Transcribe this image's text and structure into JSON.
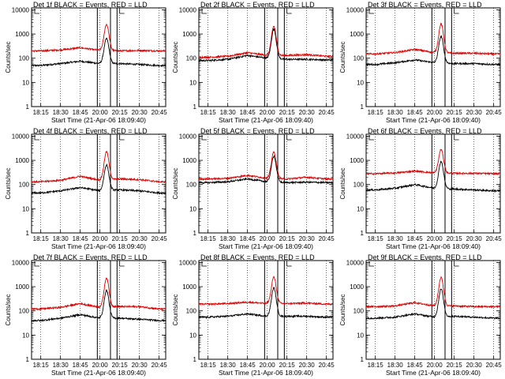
{
  "figure": {
    "ylabel": "Counts/sec",
    "xlabel": "Start Time (21-Apr-06 18:09:40)",
    "x_tick_labels": [
      "18:15",
      "18:30",
      "18:45",
      "20:00",
      "20:15",
      "20:30",
      "20:45"
    ],
    "y_tick_labels": [
      "1",
      "10",
      "100",
      "1000",
      "10000"
    ],
    "series_colors": {
      "events": "#000000",
      "lld": "#dd0000"
    }
  },
  "chart_data": [
    {
      "type": "line",
      "title": "Det 1f BLACK = Events, RED = LLD",
      "yscale": "log",
      "ylim": [
        1,
        12000
      ],
      "x_categories": [
        "18:15",
        "18:30",
        "18:45",
        "20:00",
        "20:15",
        "20:30",
        "20:45"
      ],
      "series": [
        {
          "color": "#000000",
          "x": [
            "18:15",
            "18:30",
            "18:45",
            "20:00",
            "20:05",
            "20:15",
            "20:30",
            "20:45"
          ],
          "values": [
            50,
            60,
            75,
            60,
            650,
            60,
            55,
            50
          ]
        },
        {
          "color": "#dd0000",
          "x": [
            "18:15",
            "18:30",
            "18:45",
            "20:00",
            "20:05",
            "20:15",
            "20:30",
            "20:45"
          ],
          "values": [
            200,
            220,
            270,
            210,
            2500,
            200,
            210,
            200
          ]
        }
      ]
    },
    {
      "type": "line",
      "title": "Det 2f BLACK = Events, RED = LLD",
      "yscale": "log",
      "ylim": [
        1,
        12000
      ],
      "x_categories": [
        "18:15",
        "18:30",
        "18:45",
        "20:00",
        "20:15",
        "20:30",
        "20:45"
      ],
      "series": [
        {
          "color": "#000000",
          "x": [
            "18:15",
            "18:30",
            "18:45",
            "20:00",
            "20:05",
            "20:15",
            "20:30",
            "20:45"
          ],
          "values": [
            80,
            90,
            130,
            100,
            1600,
            90,
            90,
            85
          ]
        },
        {
          "color": "#dd0000",
          "x": [
            "18:15",
            "18:30",
            "18:45",
            "20:00",
            "20:05",
            "20:15",
            "20:30",
            "20:45"
          ],
          "values": [
            110,
            120,
            170,
            130,
            2100,
            130,
            140,
            120
          ]
        }
      ]
    },
    {
      "type": "line",
      "title": "Det 3f BLACK = Events, RED = LLD",
      "yscale": "log",
      "ylim": [
        1,
        12000
      ],
      "x_categories": [
        "18:15",
        "18:30",
        "18:45",
        "20:00",
        "20:15",
        "20:30",
        "20:45"
      ],
      "series": [
        {
          "color": "#000000",
          "x": [
            "18:15",
            "18:30",
            "18:45",
            "20:00",
            "20:05",
            "20:15",
            "20:30",
            "20:45"
          ],
          "values": [
            55,
            65,
            85,
            65,
            800,
            60,
            60,
            55
          ]
        },
        {
          "color": "#dd0000",
          "x": [
            "18:15",
            "18:30",
            "18:45",
            "20:00",
            "20:05",
            "20:15",
            "20:30",
            "20:45"
          ],
          "values": [
            150,
            170,
            230,
            170,
            2600,
            160,
            160,
            150
          ]
        }
      ]
    },
    {
      "type": "line",
      "title": "Det 4f BLACK = Events, RED = LLD",
      "yscale": "log",
      "ylim": [
        1,
        12000
      ],
      "x_categories": [
        "18:15",
        "18:30",
        "18:45",
        "20:00",
        "20:15",
        "20:30",
        "20:45"
      ],
      "series": [
        {
          "color": "#000000",
          "x": [
            "18:15",
            "18:30",
            "18:45",
            "20:00",
            "20:05",
            "20:15",
            "20:30",
            "20:45"
          ],
          "values": [
            45,
            55,
            75,
            55,
            650,
            60,
            55,
            45
          ]
        },
        {
          "color": "#dd0000",
          "x": [
            "18:15",
            "18:30",
            "18:45",
            "20:00",
            "20:05",
            "20:15",
            "20:30",
            "20:45"
          ],
          "values": [
            130,
            150,
            220,
            150,
            2300,
            170,
            160,
            130
          ]
        }
      ]
    },
    {
      "type": "line",
      "title": "Det 5f BLACK = Events, RED = LLD",
      "yscale": "log",
      "ylim": [
        1,
        12000
      ],
      "x_categories": [
        "18:15",
        "18:30",
        "18:45",
        "20:00",
        "20:15",
        "20:30",
        "20:45"
      ],
      "series": [
        {
          "color": "#000000",
          "x": [
            "18:15",
            "18:30",
            "18:45",
            "20:00",
            "20:05",
            "20:15",
            "20:30",
            "20:45"
          ],
          "values": [
            120,
            130,
            170,
            130,
            1500,
            120,
            125,
            120
          ]
        },
        {
          "color": "#dd0000",
          "x": [
            "18:15",
            "18:30",
            "18:45",
            "20:00",
            "20:05",
            "20:15",
            "20:30",
            "20:45"
          ],
          "values": [
            170,
            180,
            240,
            180,
            2200,
            170,
            200,
            170
          ]
        }
      ]
    },
    {
      "type": "line",
      "title": "Det 6f BLACK = Events, RED = LLD",
      "yscale": "log",
      "ylim": [
        1,
        12000
      ],
      "x_categories": [
        "18:15",
        "18:30",
        "18:45",
        "20:00",
        "20:15",
        "20:30",
        "20:45"
      ],
      "series": [
        {
          "color": "#000000",
          "x": [
            "18:15",
            "18:30",
            "18:45",
            "20:00",
            "20:05",
            "20:15",
            "20:30",
            "20:45"
          ],
          "values": [
            60,
            70,
            100,
            70,
            900,
            65,
            60,
            55
          ]
        },
        {
          "color": "#dd0000",
          "x": [
            "18:15",
            "18:30",
            "18:45",
            "20:00",
            "20:05",
            "20:15",
            "20:30",
            "20:45"
          ],
          "values": [
            280,
            300,
            360,
            300,
            2800,
            290,
            290,
            280
          ]
        }
      ]
    },
    {
      "type": "line",
      "title": "Det 7f BLACK = Events, RED = LLD",
      "yscale": "log",
      "ylim": [
        1,
        12000
      ],
      "x_categories": [
        "18:15",
        "18:30",
        "18:45",
        "20:00",
        "20:15",
        "20:30",
        "20:45"
      ],
      "series": [
        {
          "color": "#000000",
          "x": [
            "18:15",
            "18:30",
            "18:45",
            "20:00",
            "20:05",
            "20:15",
            "20:30",
            "20:45"
          ],
          "values": [
            40,
            50,
            70,
            50,
            700,
            50,
            45,
            40
          ]
        },
        {
          "color": "#dd0000",
          "x": [
            "18:15",
            "18:30",
            "18:45",
            "20:00",
            "20:05",
            "20:15",
            "20:30",
            "20:45"
          ],
          "values": [
            120,
            140,
            200,
            140,
            2300,
            150,
            150,
            120
          ]
        }
      ]
    },
    {
      "type": "line",
      "title": "Det 8f BLACK = Events, RED = LLD",
      "yscale": "log",
      "ylim": [
        1,
        12000
      ],
      "x_categories": [
        "18:15",
        "18:30",
        "18:45",
        "20:00",
        "20:15",
        "20:30",
        "20:45"
      ],
      "series": [
        {
          "color": "#000000",
          "x": [
            "18:15",
            "18:30",
            "18:45",
            "20:00",
            "20:05",
            "20:15",
            "20:30",
            "20:45"
          ],
          "values": [
            55,
            60,
            75,
            60,
            900,
            60,
            60,
            55
          ]
        },
        {
          "color": "#dd0000",
          "x": [
            "18:15",
            "18:30",
            "18:45",
            "20:00",
            "20:05",
            "20:15",
            "20:30",
            "20:45"
          ],
          "values": [
            190,
            200,
            230,
            200,
            2500,
            200,
            210,
            190
          ]
        }
      ]
    },
    {
      "type": "line",
      "title": "Det 9f BLACK = Events, RED = LLD",
      "yscale": "log",
      "ylim": [
        1,
        12000
      ],
      "x_categories": [
        "18:15",
        "18:30",
        "18:45",
        "20:00",
        "20:15",
        "20:30",
        "20:45"
      ],
      "series": [
        {
          "color": "#000000",
          "x": [
            "18:15",
            "18:30",
            "18:45",
            "20:00",
            "20:05",
            "20:15",
            "20:30",
            "20:45"
          ],
          "values": [
            50,
            55,
            75,
            55,
            800,
            60,
            55,
            50
          ]
        },
        {
          "color": "#dd0000",
          "x": [
            "18:15",
            "18:30",
            "18:45",
            "20:00",
            "20:05",
            "20:15",
            "20:30",
            "20:45"
          ],
          "values": [
            150,
            160,
            220,
            160,
            2400,
            160,
            150,
            150
          ]
        }
      ]
    }
  ]
}
